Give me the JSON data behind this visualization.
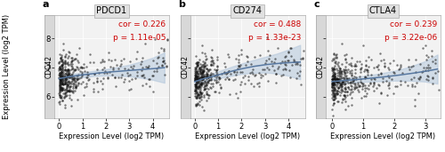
{
  "panels": [
    {
      "label": "a",
      "title": "PDCD1",
      "cor_text": "cor = 0.226",
      "p_text": "p = 1.11e-05",
      "xlim": [
        -0.2,
        4.7
      ],
      "ylim": [
        5.25,
        8.8
      ],
      "xticks": [
        0,
        1,
        2,
        3,
        4
      ],
      "yticks": [
        6,
        7,
        8
      ],
      "spline_x": [
        0.0,
        0.3,
        0.7,
        1.0,
        1.5,
        2.0,
        2.5,
        3.0,
        3.5,
        4.0,
        4.5
      ],
      "spline_y": [
        6.62,
        6.67,
        6.72,
        6.75,
        6.8,
        6.84,
        6.87,
        6.9,
        6.93,
        6.96,
        7.0
      ],
      "spline_y_lo": [
        6.56,
        6.6,
        6.64,
        6.67,
        6.71,
        6.73,
        6.72,
        6.7,
        6.65,
        6.58,
        6.48
      ],
      "spline_y_hi": [
        6.68,
        6.74,
        6.8,
        6.83,
        6.89,
        6.95,
        7.02,
        7.1,
        7.21,
        7.34,
        7.52
      ]
    },
    {
      "label": "b",
      "title": "CD274",
      "cor_text": "cor = 0.488",
      "p_text": "p = 1.33e-23",
      "xlim": [
        -0.2,
        4.7
      ],
      "ylim": [
        5.25,
        8.8
      ],
      "xticks": [
        0,
        1,
        2,
        3,
        4
      ],
      "yticks": [
        6,
        7,
        8
      ],
      "spline_x": [
        0.0,
        0.3,
        0.7,
        1.0,
        1.5,
        2.0,
        2.5,
        3.0,
        3.5,
        4.0,
        4.5
      ],
      "spline_y": [
        6.52,
        6.6,
        6.68,
        6.75,
        6.86,
        6.96,
        7.04,
        7.1,
        7.14,
        7.17,
        7.19
      ],
      "spline_y_lo": [
        6.44,
        6.51,
        6.58,
        6.63,
        6.71,
        6.78,
        6.82,
        6.83,
        6.8,
        6.72,
        6.6
      ],
      "spline_y_hi": [
        6.6,
        6.69,
        6.78,
        6.87,
        7.01,
        7.14,
        7.26,
        7.37,
        7.48,
        7.62,
        7.78
      ]
    },
    {
      "label": "c",
      "title": "CTLA4",
      "cor_text": "cor = 0.239",
      "p_text": "p = 3.22e-06",
      "xlim": [
        -0.2,
        3.5
      ],
      "ylim": [
        5.25,
        8.8
      ],
      "xticks": [
        0,
        1,
        2,
        3
      ],
      "yticks": [
        6,
        7,
        8
      ],
      "spline_x": [
        0.0,
        0.3,
        0.7,
        1.0,
        1.5,
        2.0,
        2.5,
        3.0,
        3.4
      ],
      "spline_y": [
        6.52,
        6.55,
        6.58,
        6.61,
        6.66,
        6.72,
        6.79,
        6.87,
        6.95
      ],
      "spline_y_lo": [
        6.45,
        6.47,
        6.49,
        6.51,
        6.53,
        6.55,
        6.55,
        6.52,
        6.45
      ],
      "spline_y_hi": [
        6.59,
        6.63,
        6.67,
        6.71,
        6.79,
        6.89,
        7.03,
        7.22,
        7.45
      ]
    }
  ],
  "n_points": 480,
  "dot_color": "#111111",
  "dot_size": 3.0,
  "dot_alpha": 0.55,
  "line_color": "#5878a0",
  "ci_color": "#a8bfd8",
  "ci_alpha": 0.45,
  "cor_color": "#cc0000",
  "panel_bg": "#f2f2f2",
  "title_bg": "#e0e0e0",
  "strip_bg": "#d8d8d8",
  "ylabel": "Expression Level (log2 TPM)",
  "xlabel": "Expression Level (log2 TPM)",
  "ylabel_strip": "CDC42",
  "label_fontsize": 8,
  "title_fontsize": 7,
  "tick_fontsize": 6,
  "cor_fontsize": 6.5,
  "strip_fontsize": 5.5,
  "axis_label_fontsize": 6
}
